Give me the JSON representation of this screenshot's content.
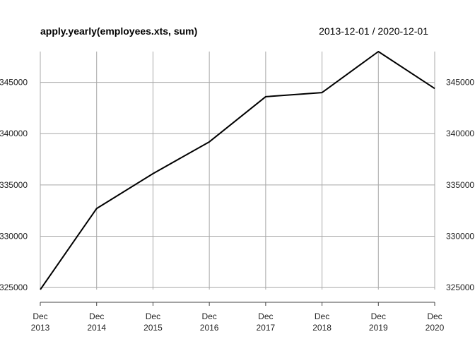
{
  "chart_data": {
    "type": "line",
    "title": "apply.yearly(employees.xts, sum)",
    "date_range": "2013-12-01 / 2020-12-01",
    "x": [
      "Dec 2013",
      "Dec 2014",
      "Dec 2015",
      "Dec 2016",
      "Dec 2017",
      "Dec 2018",
      "Dec 2019",
      "Dec 2020"
    ],
    "x_tick_labels": [
      {
        "month": "Dec",
        "year": "2013"
      },
      {
        "month": "Dec",
        "year": "2014"
      },
      {
        "month": "Dec",
        "year": "2015"
      },
      {
        "month": "Dec",
        "year": "2016"
      },
      {
        "month": "Dec",
        "year": "2017"
      },
      {
        "month": "Dec",
        "year": "2018"
      },
      {
        "month": "Dec",
        "year": "2019"
      },
      {
        "month": "Dec",
        "year": "2020"
      }
    ],
    "series": [
      {
        "values": [
          324800,
          332700,
          336100,
          339200,
          343600,
          344000,
          348000,
          344400
        ]
      }
    ],
    "y_ticks": [
      325000,
      330000,
      335000,
      340000,
      345000
    ],
    "y_tick_labels": [
      "325000",
      "330000",
      "335000",
      "340000",
      "345000"
    ],
    "ylim": [
      324800,
      348000
    ],
    "grid": true,
    "line_color": "#000000",
    "grid_color": "#a8a8a8"
  }
}
